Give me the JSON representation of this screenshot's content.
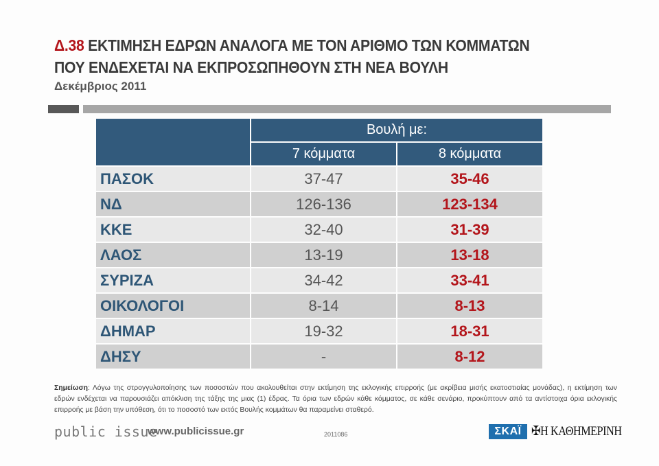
{
  "header": {
    "code": "Δ.38",
    "title_line1": "ΕΚΤΙΜΗΣΗ ΕΔΡΩΝ ΑΝΑΛΟΓΑ ΜΕ ΤΟΝ ΑΡΙΘΜΟ ΤΩΝ ΚΟΜΜΑΤΩΝ",
    "title_line2": "ΠΟΥ ΕΝΔΕΧΕΤΑΙ ΝΑ ΕΚΠΡΟΣΩΠΗΘΟΥΝ ΣΤΗ ΝΕΑ ΒΟΥΛΗ",
    "subtitle": "Δεκέμβριος 2011"
  },
  "table": {
    "group_header": "Βουλή με:",
    "columns": [
      "7 κόμματα",
      "8 κόμματα"
    ],
    "rows": [
      {
        "party": "ΠΑΣΟΚ",
        "seven": "37-47",
        "eight": "35-46"
      },
      {
        "party": "ΝΔ",
        "seven": "126-136",
        "eight": "123-134"
      },
      {
        "party": "ΚΚΕ",
        "seven": "32-40",
        "eight": "31-39"
      },
      {
        "party": "ΛΑΟΣ",
        "seven": "13-19",
        "eight": "13-18"
      },
      {
        "party": "ΣΥΡΙΖΑ",
        "seven": "34-42",
        "eight": "33-41"
      },
      {
        "party": "ΟΙΚΟΛΟΓΟΙ",
        "seven": "8-14",
        "eight": "8-13"
      },
      {
        "party": "ΔΗΜΑΡ",
        "seven": "19-32",
        "eight": "18-31"
      },
      {
        "party": "ΔΗΣΥ",
        "seven": "-",
        "eight": "8-12"
      }
    ]
  },
  "note": {
    "label": "Σημείωση",
    "text": ": Λόγω της στρογγυλοποίησης των ποσοστών που ακολουθείται στην εκτίμηση της εκλογικής επιρροής (με ακρίβεια μισής εκατοστιαίας μονάδας), η εκτίμηση των εδρών ενδέχεται να παρουσιάζει απόκλιση της τάξης της μιας (1) έδρας. Τα όρια των εδρών κάθε κόμματος, σε κάθε σενάριο, προκύπτουν από τα αντίστοιχα όρια εκλογικής επιρροής με βάση την υπόθεση, ότι το ποσοστό των εκτός Βουλής κομμάτων θα παραμείνει σταθερό."
  },
  "footer": {
    "brand": "public issue",
    "url": "www.publicissue.gr",
    "code": "2011086",
    "logo_skai": "ΣΚΑΪ",
    "logo_kathimerini": "Η ΚΑΘΗΜΕΡΙΝΗ"
  },
  "colors": {
    "accent_red": "#b3151b",
    "header_blue": "#325a7c",
    "party_blue": "#2e5676"
  }
}
